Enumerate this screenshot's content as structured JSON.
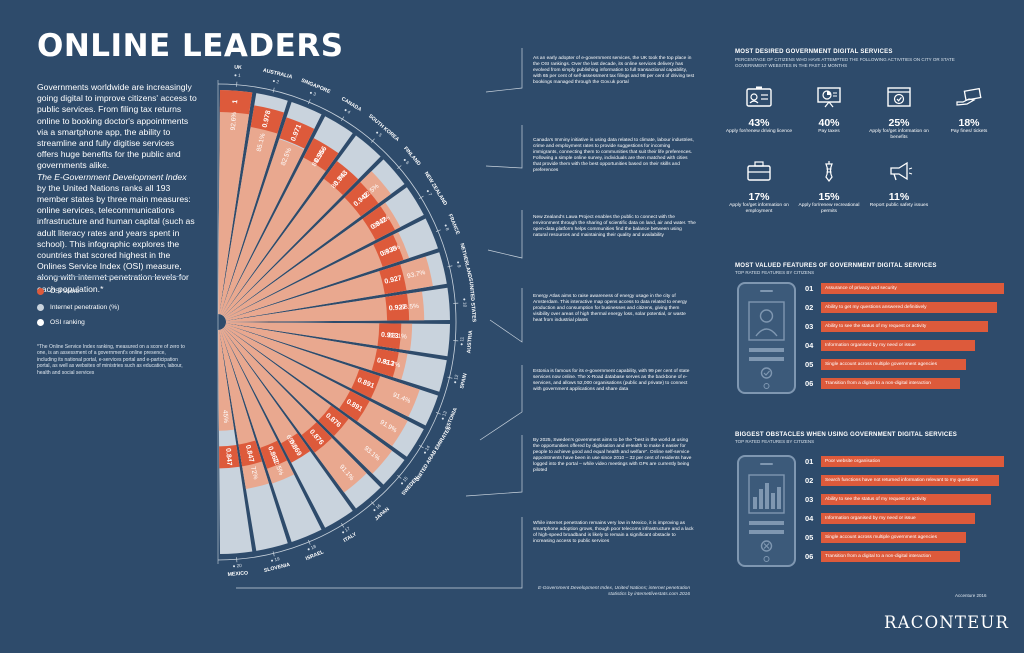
{
  "title": "ONLINE LEADERS",
  "intro_text": "Governments worldwide are increasingly going digital to improve citizens' access to public services. From filing tax returns online to booking doctor's appointments via a smartphone app, the ability to streamline and fully digitise services offers huge benefits for the public and governments alike.",
  "intro_text2_italic": "The E-Government Development Index",
  "intro_text3": "by the United Nations ranks all 193 member states by three main measures: online services, telecommunications infrastructure and human capital (such as adult literacy rates and years spent in school). This infographic explores the countries that scored highest in the Onlines Service Index (OSI) measure, along with internet penetration levels for each population.*",
  "legend": [
    {
      "label": "OSI score",
      "color": "#dd5a3b"
    },
    {
      "label": "Internet penetration (%)",
      "color": "#c9d3dd"
    },
    {
      "label": "OSI ranking",
      "color": "#ffffff"
    }
  ],
  "footnote": "*The Online Service Index ranking, measured on a score of zero to one, is an assessment of a government's online presence, including its national portal, e-services portal and e-participation portal, as well as websites of ministries such as education, labour, health and social services",
  "countries": [
    {
      "name": "UK",
      "rank": "1",
      "osi": 1.0,
      "osi_label": "1",
      "internet": 92.6,
      "internet_label": "92.6%"
    },
    {
      "name": "AUSTRALIA",
      "rank": "2",
      "osi": 0.978,
      "osi_label": "0.978",
      "internet": 85.1,
      "internet_label": "85.1%"
    },
    {
      "name": "SINGAPORE",
      "rank": "3",
      "osi": 0.971,
      "osi_label": "0.971",
      "internet": 82.5,
      "internet_label": "82.5%"
    },
    {
      "name": "CANADA",
      "rank": "4",
      "osi": 0.956,
      "osi_label": "0.956",
      "internet": 88.5,
      "internet_label": "88.5%"
    },
    {
      "name": "SOUTH KOREA",
      "rank": "5",
      "osi": 0.943,
      "osi_label": "0.943",
      "internet": 85.7,
      "internet_label": "85.7%"
    },
    {
      "name": "FINLAND",
      "rank": "6",
      "osi": 0.942,
      "osi_label": "0.942",
      "internet": 92.5,
      "internet_label": "92.5%"
    },
    {
      "name": "NEW ZEALAND",
      "rank": "7",
      "osi": 0.942,
      "osi_label": "0.942",
      "internet": 88.2,
      "internet_label": "88.2%"
    },
    {
      "name": "FRANCE",
      "rank": "8",
      "osi": 0.935,
      "osi_label": "0.935",
      "internet": 86.4,
      "internet_label": "86.4%"
    },
    {
      "name": "NETHERLANDS",
      "rank": "9",
      "osi": 0.927,
      "osi_label": "0.927",
      "internet": 93.7,
      "internet_label": "93.7%"
    },
    {
      "name": "UNITED STATES",
      "rank": "10",
      "osi": 0.927,
      "osi_label": "0.927",
      "internet": 88.5,
      "internet_label": "88.5%"
    },
    {
      "name": "AUSTRIA",
      "rank": "11",
      "osi": 0.913,
      "osi_label": "0.913",
      "internet": 83.1,
      "internet_label": "83.1%"
    },
    {
      "name": "SPAIN",
      "rank": "12",
      "osi": 0.913,
      "osi_label": "0.913",
      "internet": 82.2,
      "internet_label": "82.2%"
    },
    {
      "name": "ESTONIA",
      "rank": "13",
      "osi": 0.891,
      "osi_label": "0.891",
      "internet": 91.4,
      "internet_label": "91.4%"
    },
    {
      "name": "UNITED ARAB EMIRATES",
      "rank": "14",
      "osi": 0.891,
      "osi_label": "0.891",
      "internet": 91.9,
      "internet_label": "91.9%"
    },
    {
      "name": "SWEDEN",
      "rank": "15",
      "osi": 0.876,
      "osi_label": "0.876",
      "internet": 93.1,
      "internet_label": "93.1%"
    },
    {
      "name": "JAPAN",
      "rank": "16",
      "osi": 0.876,
      "osi_label": "0.876",
      "internet": 91.1,
      "internet_label": "91.1%"
    },
    {
      "name": "ITALY",
      "rank": "17",
      "osi": 0.869,
      "osi_label": "0.869",
      "internet": 65.0,
      "internet_label": "65%"
    },
    {
      "name": "ISRAEL",
      "rank": "18",
      "osi": 0.862,
      "osi_label": "0.862",
      "internet": 72.5,
      "internet_label": "72.5%"
    },
    {
      "name": "SLOVENIA",
      "rank": "19",
      "osi": 0.847,
      "osi_label": "0.847",
      "internet": 72.0,
      "internet_label": "72%"
    },
    {
      "name": "MEXICO",
      "rank": "20",
      "osi": 0.847,
      "osi_label": "0.847",
      "internet": 45.0,
      "internet_label": "45%"
    }
  ],
  "infoboxes": [
    "As an early adopter of e-government services, the UK took the top place in the OSI rankings. Over the last decade, its online services delivery has evolved from simply publishing information to full transactional capability, with 65 per cent of self-assessment tax filings and 98 per cent of driving test bookings managed through the Gov.uk portal",
    "Canada's Imminy initiative is using data related to climate, labour industries, crime and employment rates to provide suggestions for incoming immigrants, connecting them to communities that suit their life preferences. Following a simple online survey, individuals are then matched with cities that provide them with the best opportunities based on their skills and preferences",
    "New Zealand's Lawa Project enables the public to connect with the environment through the sharing of scientific data on land, air and water. The open-data platform helps communities find the balance between using natural resources and maintaining their quality and availability",
    "Energy Atlas aims to raise awareness of energy usage in the city of Amsterdam. This interactive map opens access to data related to energy production and consumption for businesses and citizens, giving them visibility over areas of high thermal energy loss, solar potential, or waste heat from industrial plants",
    "Estonia is famous for its e-government capability, with 99 per cent of state services now online. The X-Road database serves as the backbone of e-services, and allows 52,000 organisations (public and private) to connect with government applications and share data",
    "By 2025, Sweden's government aims to be the \"best in the world at using the opportunities offered by digitisation and eHealth to make it easier for people to achieve good and equal health and welfare\". Online self-service appointments have been in use since 2010 – 32 per cent of residents have logged into the portal – while video meetings with GPs are currently being piloted",
    "While internet penetration remains very low in Mexico, it is improving as smartphone adoption grows, though poor telecoms infrastructure and a lack of high-speed broadband is likely to remain a significant obstacle to increasing access to public services"
  ],
  "source": "E-Government Development Index, United Nations; internet penetration statistics by internetlivestats.com 2016",
  "desired": {
    "title": "MOST DESIRED GOVERNMENT DIGITAL SERVICES",
    "subtitle": "PERCENTAGE OF CITIZENS WHO HAVE ATTEMPTED THE FOLLOWING ACTIVITIES ON CITY OR STATE GOVERNMENT WEBSITES IN THE PAST 12 MONTHS",
    "items": [
      {
        "pct": "43%",
        "label": "Apply for/renew driving licence",
        "icon": "id-card-icon"
      },
      {
        "pct": "40%",
        "label": "Pay taxes",
        "icon": "presentation-chart-icon"
      },
      {
        "pct": "25%",
        "label": "Apply for/get information on benefits",
        "icon": "browser-check-icon"
      },
      {
        "pct": "18%",
        "label": "Pay fines/ tickets",
        "icon": "hand-ticket-icon"
      },
      {
        "pct": "17%",
        "label": "Apply for/get information on employment",
        "icon": "briefcase-icon"
      },
      {
        "pct": "15%",
        "label": "Apply for/renew recreational permits",
        "icon": "fish-icon"
      },
      {
        "pct": "11%",
        "label": "Report public safety issues",
        "icon": "megaphone-icon"
      }
    ]
  },
  "valued": {
    "title": "MOST VALUED FEATURES OF GOVERNMENT DIGITAL SERVICES",
    "subtitle": "TOP RATED FEATURES BY CITIZENS",
    "items": [
      {
        "num": "01",
        "label": "Assurance of privacy and security",
        "level": 1.0
      },
      {
        "num": "02",
        "label": "Ability to get my questions answered definitively",
        "level": 0.96
      },
      {
        "num": "03",
        "label": "Ability to see the status of my request or activity",
        "level": 0.91
      },
      {
        "num": "04",
        "label": "Information organised by my need or issue",
        "level": 0.84
      },
      {
        "num": "05",
        "label": "Single account across multiple government agencies",
        "level": 0.79
      },
      {
        "num": "06",
        "label": "Transition from a digital to a non-digital interaction",
        "level": 0.76
      }
    ]
  },
  "obstacles": {
    "title": "BIGGEST OBSTACLES WHEN USING GOVERNMENT DIGITAL SERVICES",
    "subtitle": "TOP RATED FEATURES BY CITIZENS",
    "items": [
      {
        "num": "01",
        "label": "Poor website organisation",
        "level": 1.0
      },
      {
        "num": "02",
        "label": "Search functions have not returned information relevant to my questions",
        "level": 0.97
      },
      {
        "num": "03",
        "label": "Ability to see the status of my request or activity",
        "level": 0.93
      },
      {
        "num": "04",
        "label": "Information organised by my need or issue",
        "level": 0.84
      },
      {
        "num": "05",
        "label": "Single account across multiple government agencies",
        "level": 0.79
      },
      {
        "num": "06",
        "label": "Transition from a digital to a non-digital interaction",
        "level": 0.76
      }
    ]
  },
  "credit": "Accenture 2016",
  "logo": "RACONTEUR",
  "colors": {
    "background": "#2e4b6b",
    "osi": "#dd5a3b",
    "internet": "#e9a88f",
    "grid": "#c9d3dd"
  }
}
